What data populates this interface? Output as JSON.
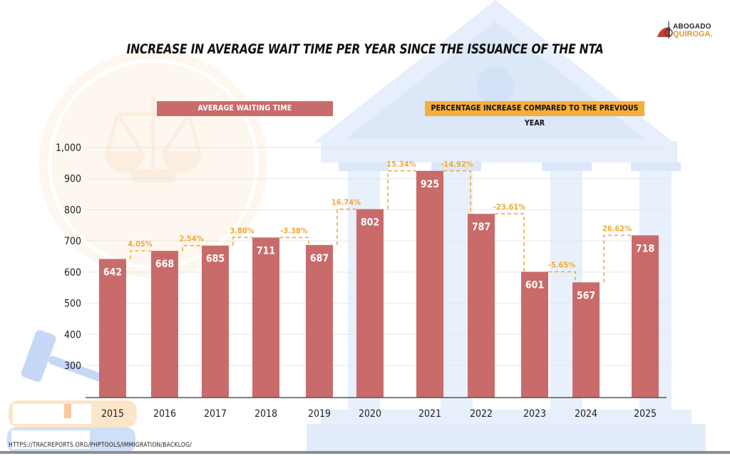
{
  "header": {
    "title": "INCREASE IN AVERAGE WAIT TIME PER YEAR SINCE THE ISSUANCE OF THE NTA",
    "logo_line1": "ABOGADO",
    "logo_line2": "QUIROGA."
  },
  "legend": {
    "bars_label": "AVERAGE WAITING TIME",
    "pct_label": "PERCENTAGE INCREASE COMPARED TO THE PREVIOUS YEAR"
  },
  "footer": {
    "source": "HTTPS://TRACREPORTS.ORG/PHPTOOLS/IMMIGRATION/BACKLOG/"
  },
  "colors": {
    "bar": "#c96b6b",
    "pct": "#f2a93b",
    "grid": "#e6e6e6",
    "axis": "#555555"
  },
  "chart_data": {
    "type": "bar",
    "title": "INCREASE IN AVERAGE WAIT TIME PER YEAR SINCE THE ISSUANCE OF THE NTA",
    "xlabel": "",
    "ylabel": "",
    "categories": [
      "2015",
      "2016",
      "2017",
      "2018",
      "2019",
      "2020",
      "2021",
      "2022",
      "2023",
      "2024",
      "2025"
    ],
    "series": [
      {
        "name": "AVERAGE WAITING TIME",
        "values": [
          642,
          668,
          685,
          711,
          687,
          802,
          925,
          787,
          601,
          567,
          718
        ],
        "labels": [
          "642",
          "668",
          "685",
          "711",
          "687",
          "802",
          "925",
          "787",
          "601",
          "567",
          "718"
        ]
      },
      {
        "name": "PERCENTAGE INCREASE COMPARED TO THE PREVIOUS YEAR",
        "values": [
          null,
          4.05,
          2.54,
          3.8,
          -3.38,
          16.74,
          15.34,
          -14.92,
          -23.61,
          -5.65,
          26.62
        ],
        "labels": [
          "",
          "4.05%",
          "2.54%",
          "3.80%",
          "-3.38%",
          "16.74%",
          "15.34%",
          "-14.92%",
          "-23.61%",
          "-5.65%",
          "26.62%"
        ]
      }
    ],
    "yticks": [
      300,
      400,
      500,
      600,
      700,
      800,
      900,
      1000
    ],
    "ytick_labels": [
      "300",
      "400",
      "500",
      "600",
      "700",
      "800",
      "900",
      "1,000"
    ],
    "ylim": [
      210,
      1000
    ],
    "grid": true,
    "legend_position": "top"
  }
}
